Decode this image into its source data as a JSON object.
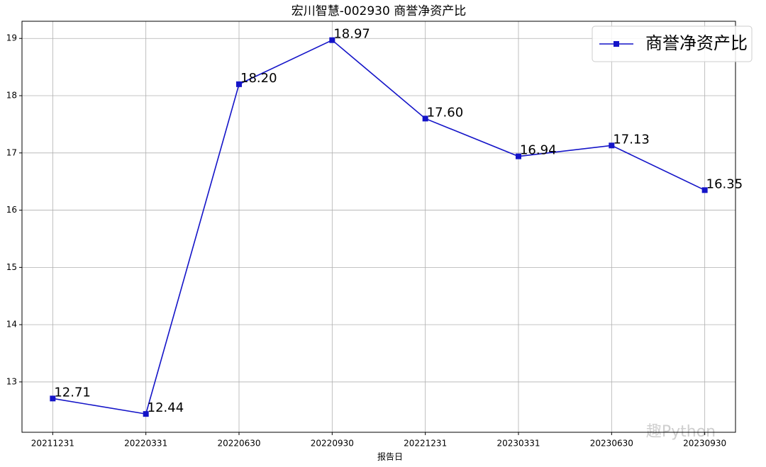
{
  "chart_data": {
    "type": "line",
    "title": "宏川智慧-002930 商誉净资产比",
    "x_label": "报告日",
    "categories": [
      "20211231",
      "20220331",
      "20220630",
      "20220930",
      "20221231",
      "20230331",
      "20230630",
      "20230930"
    ],
    "series": [
      {
        "name": "商誉净资产比",
        "color": "#1414c8",
        "marker": "square",
        "values": [
          12.71,
          12.44,
          18.2,
          18.97,
          17.6,
          16.94,
          17.13,
          16.35
        ],
        "value_labels": [
          "12.71",
          "12.44",
          "18.20",
          "18.97",
          "17.60",
          "16.94",
          "17.13",
          "16.35"
        ]
      }
    ],
    "ylim": [
      12.12,
      19.3
    ],
    "yticks": [
      13,
      14,
      15,
      16,
      17,
      18,
      19
    ],
    "grid": true,
    "legend": "upper right",
    "watermark": "趣Python"
  }
}
